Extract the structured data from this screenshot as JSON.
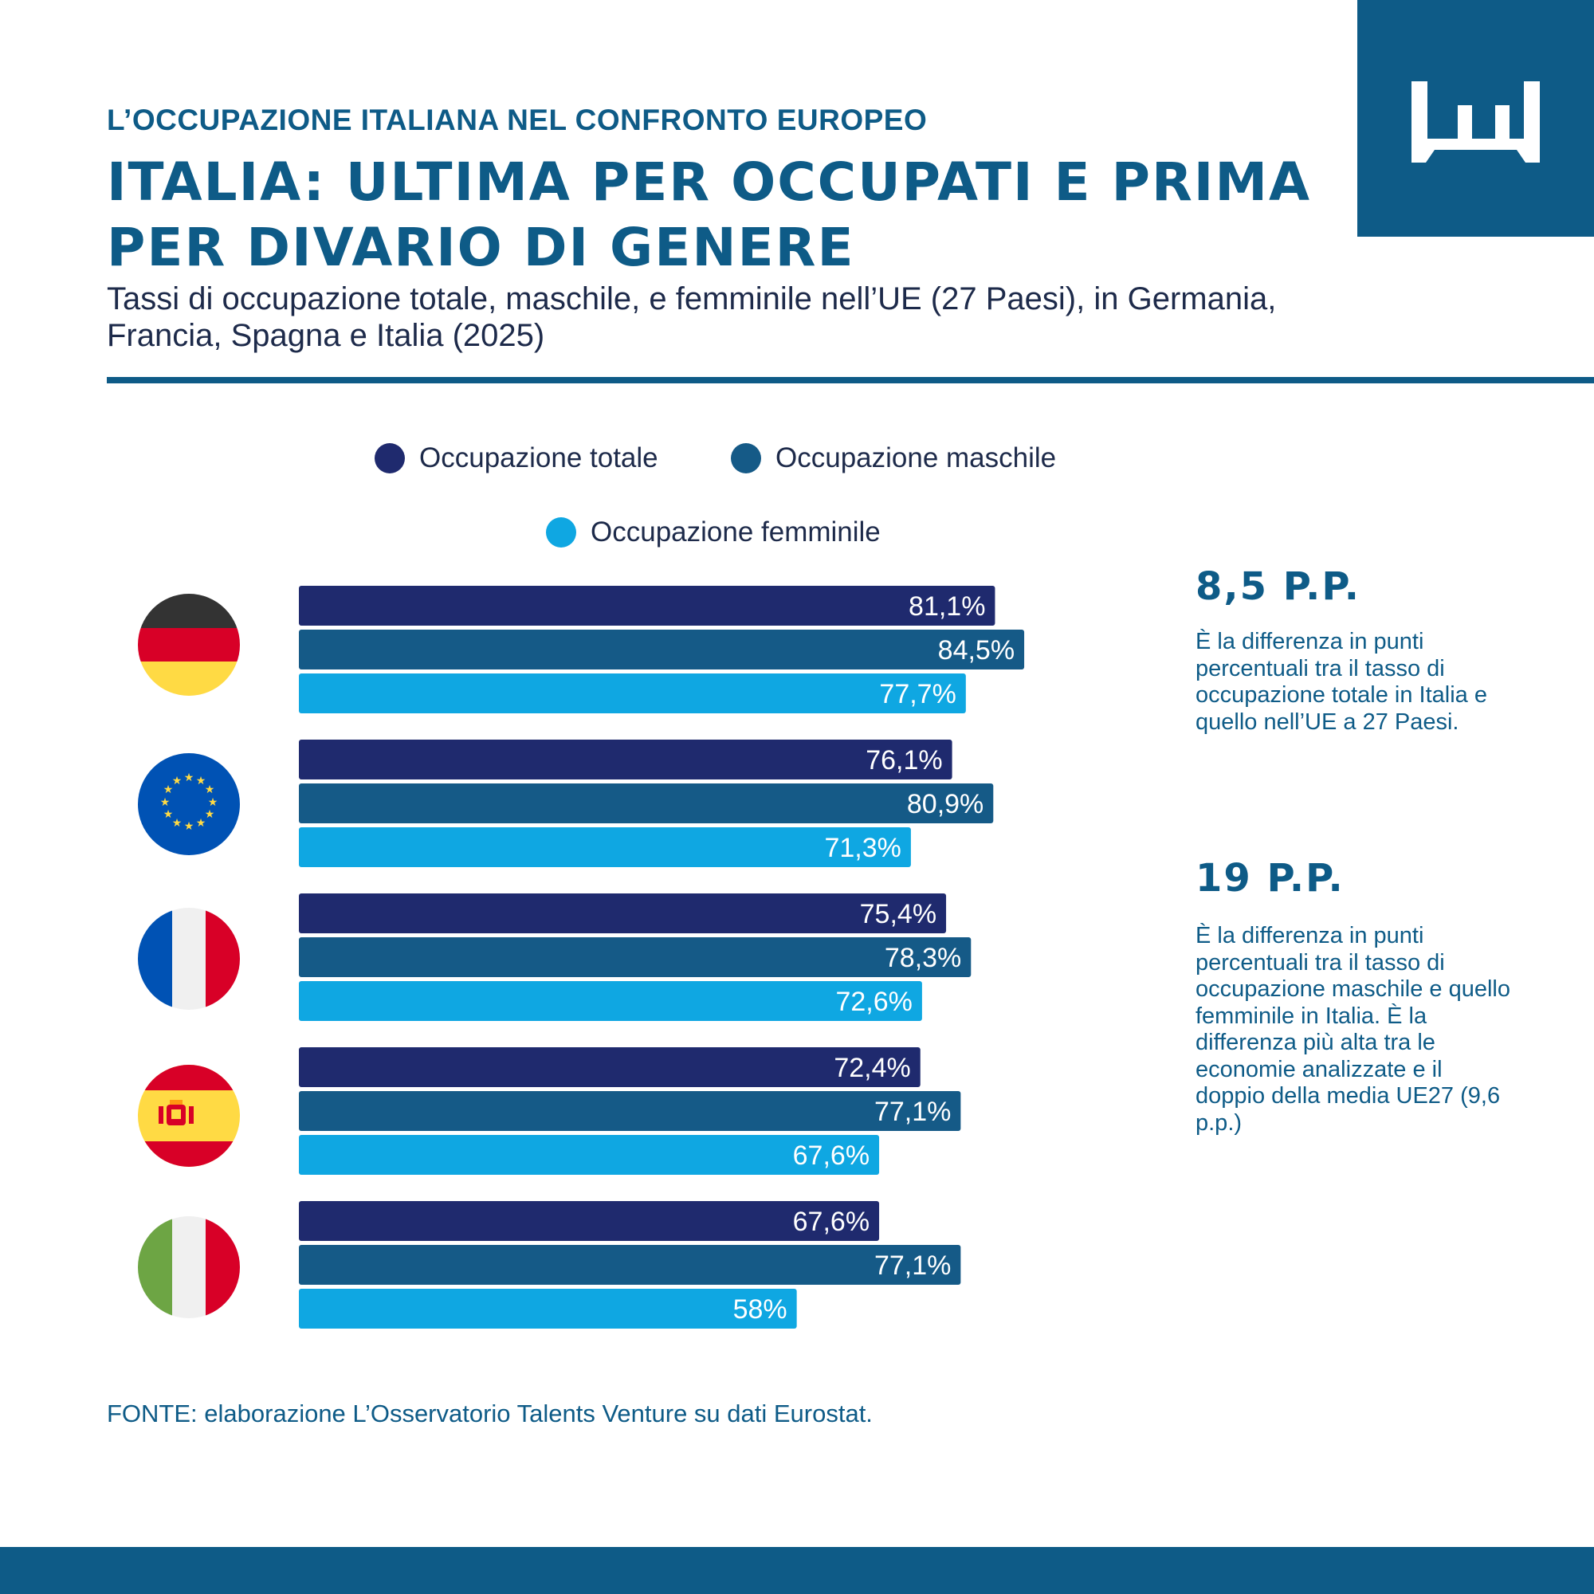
{
  "header": {
    "kicker": "L’OCCUPAZIONE ITALIANA NEL CONFRONTO EUROPEO",
    "title": "ITALIA: ULTIMA PER OCCUPATI E PRIMA PER DIVARIO DI GENERE",
    "subtitle": "Tassi di occupazione totale, maschile, e femminile nell’UE (27 Paesi), in Germania, Francia, Spagna e Italia (2025)"
  },
  "logo": {
    "icon": "crown-logo-icon",
    "background": "#0e5b87"
  },
  "legend": [
    {
      "label": "Occupazione totale",
      "color": "#1f2a6e"
    },
    {
      "label": "Occupazione maschile",
      "color": "#155a87"
    },
    {
      "label": "Occupazione femminile",
      "color": "#0fa7e2"
    }
  ],
  "flags": [
    {
      "name": "germany-flag-icon"
    },
    {
      "name": "eu-flag-icon"
    },
    {
      "name": "france-flag-icon"
    },
    {
      "name": "spain-flag-icon"
    },
    {
      "name": "italy-flag-icon"
    }
  ],
  "chart_data": {
    "type": "bar",
    "orientation": "horizontal",
    "categories": [
      "Germania",
      "UE27",
      "Francia",
      "Spagna",
      "Italia"
    ],
    "series": [
      {
        "name": "Occupazione totale",
        "color": "#1f2a6e",
        "values": [
          81.1,
          76.1,
          75.4,
          72.4,
          67.6
        ],
        "labels": [
          "81,1%",
          "76,1%",
          "75,4%",
          "72,4%",
          "67,6%"
        ]
      },
      {
        "name": "Occupazione maschile",
        "color": "#155a87",
        "values": [
          84.5,
          80.9,
          78.3,
          77.1,
          77.1
        ],
        "labels": [
          "84,5%",
          "80,9%",
          "78,3%",
          "77,1%",
          "77,1%"
        ]
      },
      {
        "name": "Occupazione femminile",
        "color": "#0fa7e2",
        "values": [
          77.7,
          71.3,
          72.6,
          67.6,
          58
        ],
        "labels": [
          "77,7%",
          "71,3%",
          "72,6%",
          "67,6%",
          "58%"
        ]
      }
    ],
    "xlim": [
      0,
      100
    ]
  },
  "callouts": [
    {
      "value": "8,5 P.P.",
      "text": "È la differenza in punti percentuali tra il tasso di occupazione totale in Italia e quello nell’UE a 27 Paesi."
    },
    {
      "value": "19 P.P.",
      "text": "È la differenza in punti percentuali tra il tasso di occupazione maschile e quello femminile in Italia. È la differenza più alta tra le economie analizzate e il doppio della media UE27 (9,6 p.p.)"
    }
  ],
  "source": "FONTE: elaborazione L’Osservatorio Talents Venture su dati Eurostat."
}
